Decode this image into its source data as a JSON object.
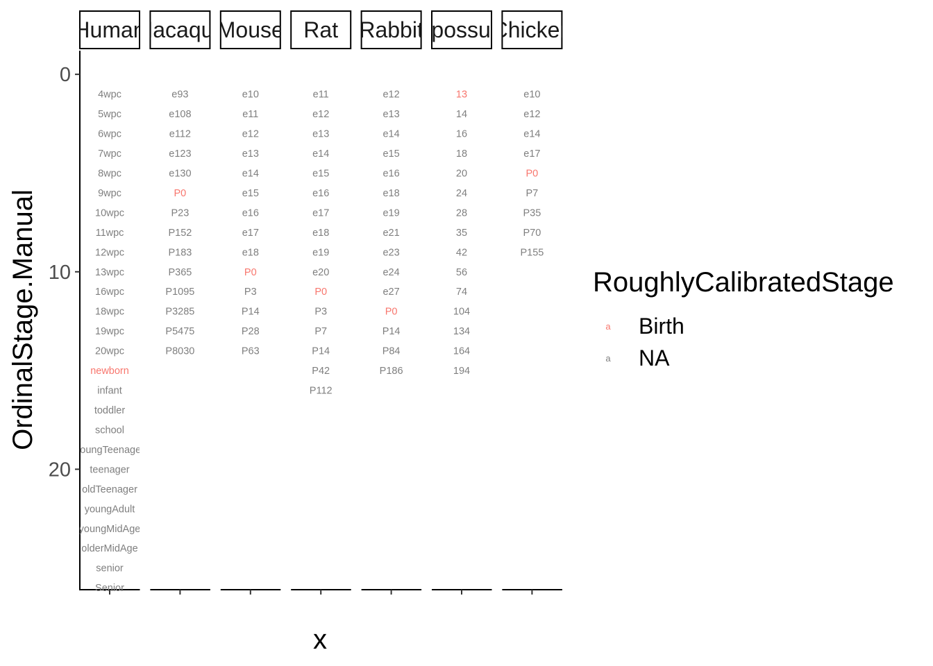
{
  "chart_data": {
    "type": "scatter",
    "xlabel": "x",
    "ylabel": "OrdinalStage.Manual",
    "ylim": [
      -1.2,
      26.1
    ],
    "y_reversed": true,
    "y_ticks": [
      0,
      10,
      20
    ],
    "grid": false,
    "legend": {
      "title": "RoughlyCalibratedStage",
      "placement": "right",
      "key_glyph": "a",
      "entries": [
        {
          "label": "Birth",
          "color": "#F8766D"
        },
        {
          "label": "NA",
          "color": "#7F7F7F"
        }
      ]
    },
    "panels": [
      {
        "name": "Human",
        "birth_index": 14,
        "stages": [
          "4wpc",
          "5wpc",
          "6wpc",
          "7wpc",
          "8wpc",
          "9wpc",
          "10wpc",
          "11wpc",
          "12wpc",
          "13wpc",
          "16wpc",
          "18wpc",
          "19wpc",
          "20wpc",
          "newborn",
          "infant",
          "toddler",
          "school",
          "youngTeenager",
          "teenager",
          "oldTeenager",
          "youngAdult",
          "youngMidAge",
          "olderMidAge",
          "senior",
          "Senior"
        ]
      },
      {
        "name": "Macaque",
        "birth_index": 5,
        "stages": [
          "e93",
          "e108",
          "e112",
          "e123",
          "e130",
          "P0",
          "P23",
          "P152",
          "P183",
          "P365",
          "P1095",
          "P3285",
          "P5475",
          "P8030"
        ]
      },
      {
        "name": "Mouse",
        "birth_index": 9,
        "stages": [
          "e10",
          "e11",
          "e12",
          "e13",
          "e14",
          "e15",
          "e16",
          "e17",
          "e18",
          "P0",
          "P3",
          "P14",
          "P28",
          "P63"
        ]
      },
      {
        "name": "Rat",
        "birth_index": 10,
        "stages": [
          "e11",
          "e12",
          "e13",
          "e14",
          "e15",
          "e16",
          "e17",
          "e18",
          "e19",
          "e20",
          "P0",
          "P3",
          "P7",
          "P14",
          "P42",
          "P112"
        ]
      },
      {
        "name": "Rabbit",
        "birth_index": 11,
        "stages": [
          "e12",
          "e13",
          "e14",
          "e15",
          "e16",
          "e18",
          "e19",
          "e21",
          "e23",
          "e24",
          "e27",
          "P0",
          "P14",
          "P84",
          "P186"
        ]
      },
      {
        "name": "Opossum",
        "birth_index": 0,
        "stages": [
          "13",
          "14",
          "16",
          "18",
          "20",
          "24",
          "28",
          "35",
          "42",
          "56",
          "74",
          "104",
          "134",
          "164",
          "194"
        ]
      },
      {
        "name": "Chicken",
        "birth_index": 4,
        "stages": [
          "e10",
          "e12",
          "e14",
          "e17",
          "P0",
          "P7",
          "P35",
          "P70",
          "P155"
        ]
      }
    ]
  }
}
